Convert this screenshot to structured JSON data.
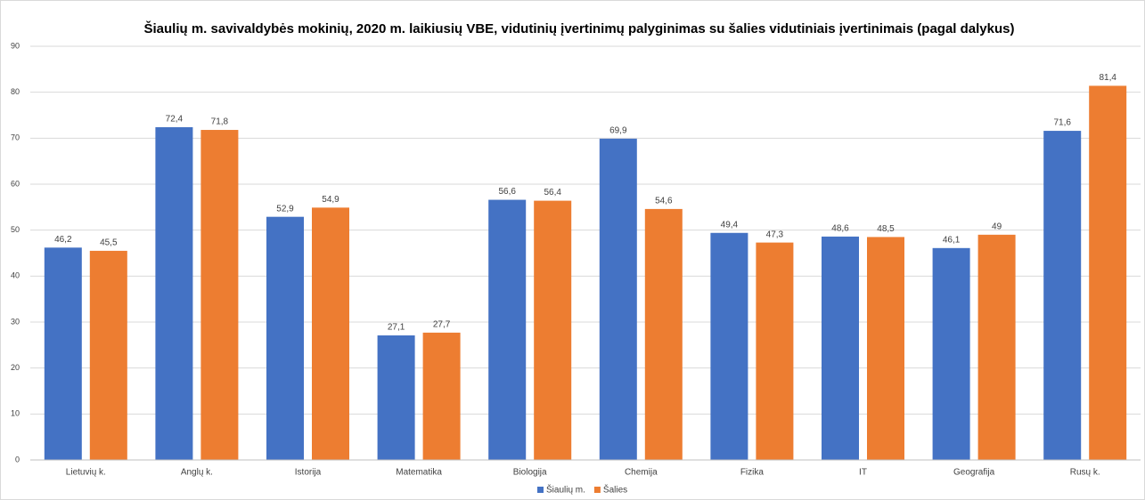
{
  "chart_data": {
    "type": "bar",
    "title": "Šiaulių m. savivaldybės mokinių, 2020 m. laikiusių VBE, vidutinių įvertinimų palyginimas su šalies vidutiniais įvertinimais (pagal dalykus)",
    "categories": [
      "Lietuvių k.",
      "Anglų k.",
      "Istorija",
      "Matematika",
      "Biologija",
      "Chemija",
      "Fizika",
      "IT",
      "Geografija",
      "Rusų k."
    ],
    "series": [
      {
        "name": "Šiaulių m.",
        "color": "#4472c4",
        "values": [
          46.2,
          72.4,
          52.9,
          27.1,
          56.6,
          69.9,
          49.4,
          48.6,
          46.1,
          71.6
        ],
        "value_labels": [
          "46,2",
          "72,4",
          "52,9",
          "27,1",
          "56,6",
          "69,9",
          "49,4",
          "48,6",
          "46,1",
          "71,6"
        ]
      },
      {
        "name": "Šalies",
        "color": "#ed7d31",
        "values": [
          45.5,
          71.8,
          54.9,
          27.7,
          56.4,
          54.6,
          47.3,
          48.5,
          49,
          81.4
        ],
        "value_labels": [
          "45,5",
          "71,8",
          "54,9",
          "27,7",
          "56,4",
          "54,6",
          "47,3",
          "48,5",
          "49",
          "81,4"
        ]
      }
    ],
    "ylim": [
      0,
      90
    ],
    "yticks": [
      0,
      10,
      20,
      30,
      40,
      50,
      60,
      70,
      80,
      90
    ],
    "grid": true,
    "legend": "bottom"
  }
}
